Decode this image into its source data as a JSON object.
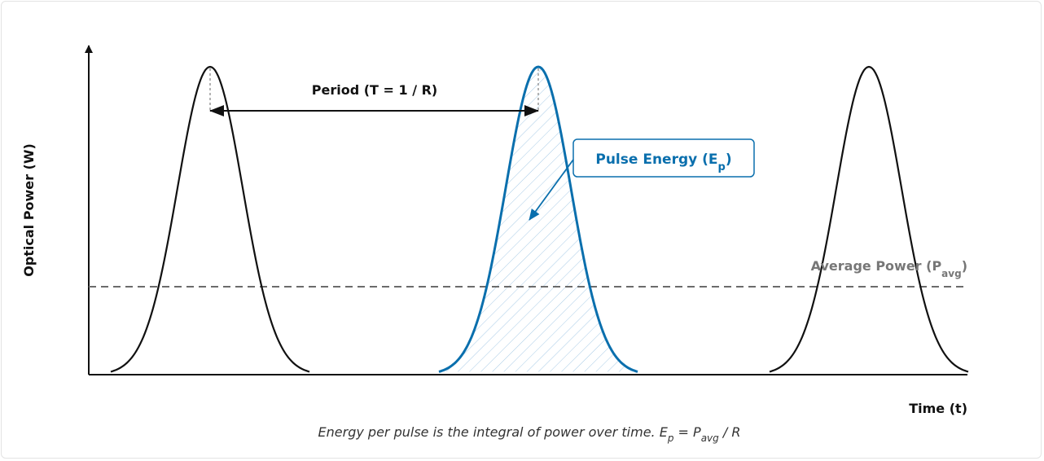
{
  "diagram": {
    "y_axis_label": "Optical Power (W)",
    "x_axis_label": "Time (t)",
    "period_label": "Period (T = 1 / R)",
    "pulse_energy_label": {
      "main": "Pulse Energy (E",
      "sub": "p",
      "close": ")"
    },
    "average_power_label": {
      "main": "Average Power (P",
      "sub": "avg",
      "close": ")"
    },
    "caption": {
      "text": "Energy per pulse is the integral of power over time. E",
      "sub1": "p",
      "mid": " = P",
      "sub2": "avg",
      "end": " / R"
    },
    "pulse_count": 3,
    "highlighted_pulse": 2,
    "colors": {
      "pulse": "#111111",
      "highlight": "#0a6fad",
      "hatch": "#a8cbe6",
      "average_line": "#6b6b6b",
      "average_label": "#777777"
    }
  }
}
